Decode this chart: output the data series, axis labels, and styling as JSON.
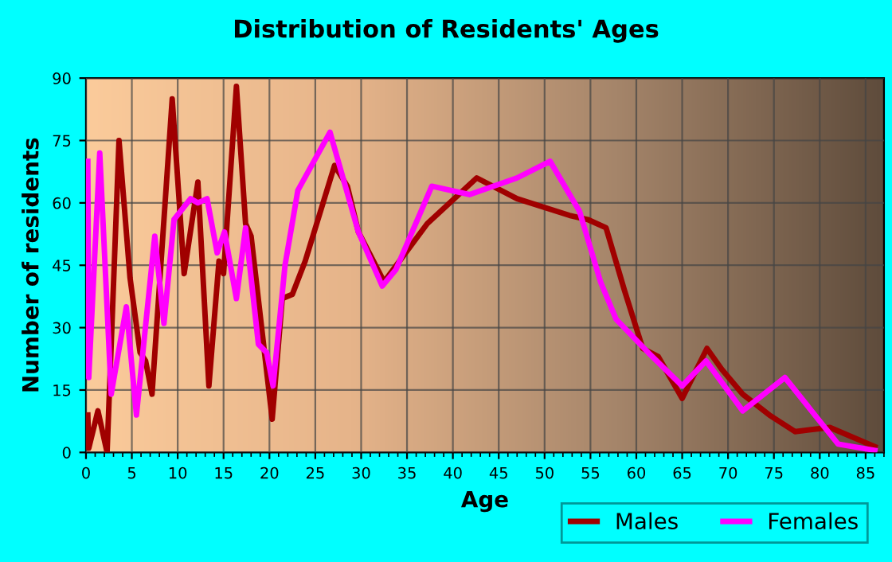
{
  "chart_data": {
    "type": "line",
    "title": "Distribution of Residents' Ages",
    "xlabel": "Age",
    "ylabel": "Number of residents",
    "xlim": [
      0,
      87
    ],
    "ylim": [
      0,
      90
    ],
    "xticks": [
      0,
      5,
      10,
      15,
      20,
      25,
      30,
      35,
      40,
      45,
      50,
      55,
      60,
      65,
      70,
      75,
      80,
      85
    ],
    "yticks": [
      0,
      15,
      30,
      45,
      60,
      75,
      90
    ],
    "grid": true,
    "legend": "bottom right",
    "line_style": "solid",
    "marker": "none",
    "series": [
      {
        "name": "Males",
        "color": "#a00000",
        "x": [
          0.2,
          0.3,
          1.3,
          2.3,
          3.6,
          4.8,
          5.9,
          6.5,
          7.2,
          9.4,
          10.7,
          12.2,
          13.4,
          14.5,
          15.0,
          16.4,
          17.4,
          18,
          20.3,
          21.4,
          22.5,
          23.9,
          27.1,
          28.5,
          29.7,
          32.5,
          37.2,
          42.6,
          47,
          52.7,
          54.7,
          56.7,
          58.7,
          60.7,
          62.4,
          65,
          67.7,
          69.3,
          71.6,
          74.5,
          77.3,
          81.1,
          86
        ],
        "values": [
          9,
          1,
          10,
          0,
          75,
          42,
          24,
          22,
          14,
          85,
          43,
          65,
          16,
          46,
          43,
          88,
          55,
          52,
          8,
          37,
          38,
          46,
          69,
          64,
          53,
          41,
          55,
          66,
          61,
          57,
          56,
          54,
          39,
          25,
          23,
          13,
          25,
          20,
          14,
          9,
          5,
          6,
          1.4
        ]
      },
      {
        "name": "Females",
        "color": "#ff00ff",
        "x": [
          0.2,
          0.3,
          1.5,
          2.75,
          4.4,
          5.5,
          7.5,
          8.5,
          9.6,
          11.4,
          12.2,
          13.2,
          14.3,
          15.1,
          16.4,
          17.4,
          18.8,
          19.7,
          20.4,
          21.7,
          23.1,
          26.6,
          29.7,
          32.3,
          33.8,
          37.7,
          41.8,
          47,
          50.6,
          53.8,
          56.1,
          57.8,
          61.3,
          65,
          67.6,
          71.6,
          76.2,
          79.1,
          82,
          86
        ],
        "values": [
          70,
          18,
          72,
          14,
          35,
          9,
          52,
          31,
          56,
          61,
          60,
          61,
          48,
          53,
          37,
          54,
          26,
          24,
          16,
          45,
          63,
          77,
          53,
          40,
          44,
          64,
          62,
          66,
          70,
          58,
          41,
          32,
          24,
          16,
          22,
          10,
          18,
          10,
          2,
          0.5
        ]
      }
    ]
  }
}
